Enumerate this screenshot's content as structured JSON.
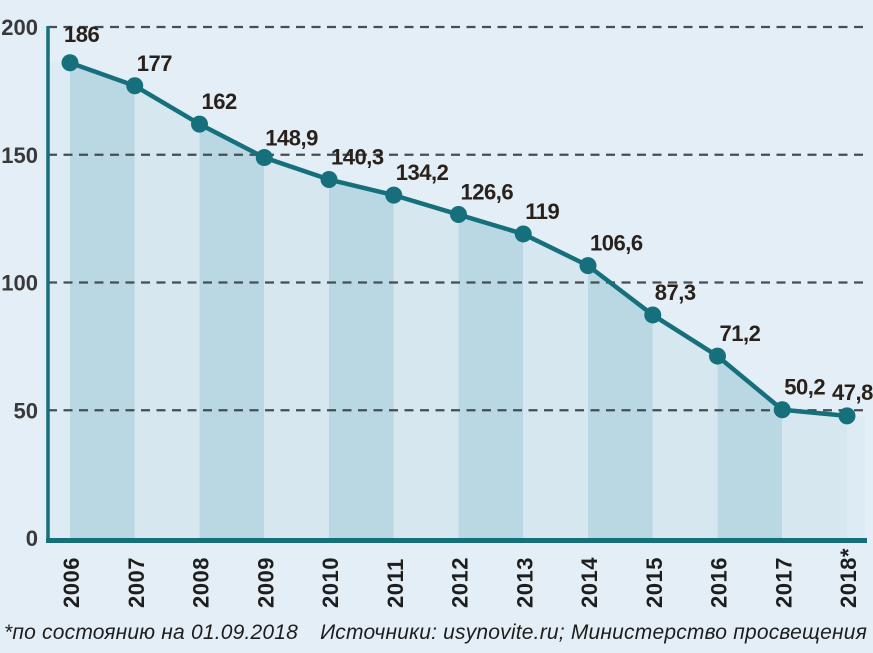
{
  "chart_data": {
    "type": "line",
    "title": "",
    "xlabel": "",
    "ylabel": "",
    "categories": [
      "2006",
      "2007",
      "2008",
      "2009",
      "2010",
      "2011",
      "2012",
      "2013",
      "2014",
      "2015",
      "2016",
      "2017",
      "2018*"
    ],
    "values": [
      186,
      177,
      162,
      148.9,
      140.3,
      134.2,
      126.6,
      119,
      106.6,
      87.3,
      71.2,
      50.2,
      47.8
    ],
    "point_labels": [
      "186",
      "177",
      "162",
      "148,9",
      "140,3",
      "134,2",
      "126,6",
      "119",
      "106,6",
      "87,3",
      "71,2",
      "50,2",
      "47,8"
    ],
    "ylim": [
      0,
      200
    ],
    "yticks": [
      0,
      50,
      100,
      150,
      200
    ],
    "ytick_labels": [
      "0",
      "50",
      "100",
      "150",
      "200"
    ],
    "grid": "dashed-horizontal",
    "legend_position": "none",
    "area_style": "alternating-vertical-stripes-under-line"
  },
  "colors": {
    "background": "#e3eef6",
    "line": "#16707c",
    "dot": "#16707c",
    "axis": "#16707c",
    "stripe_dark": "#b9d8e4",
    "stripe_light": "#d6e7f0",
    "stripe_sliver": "#ddecf4",
    "gridline": "#454e53",
    "ytick_text": "#39393b",
    "xtick_text": "#1e1e1e",
    "point_label_text": "#29211b"
  },
  "footnote": {
    "note": "*по состоянию на 01.09.2018",
    "sources": "Источники: usynovite.ru; Министерство просвещения РФ"
  }
}
